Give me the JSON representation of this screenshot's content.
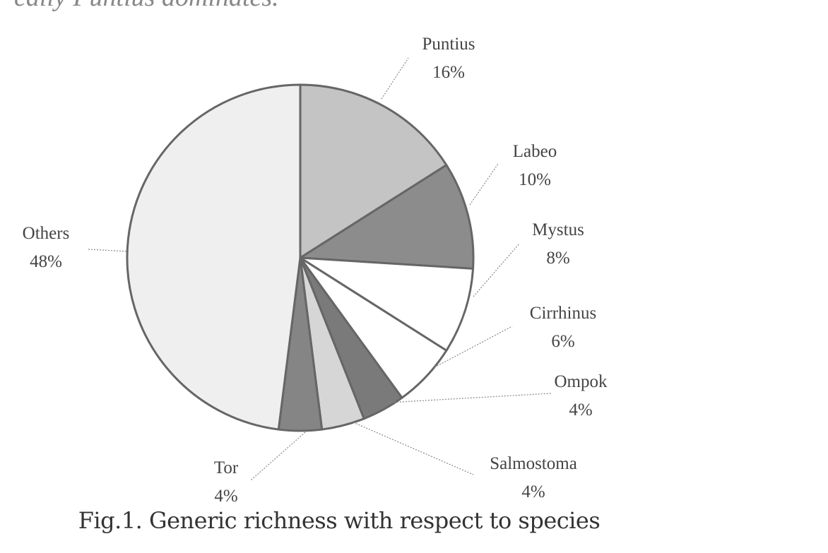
{
  "top_text": "cally Puntius dominates.",
  "caption": "Fig.1. Generic richness with respect to species",
  "chart_data": {
    "type": "pie",
    "title": "",
    "start": "top",
    "direction": "clockwise",
    "slices": [
      {
        "label": "Puntius",
        "value": 16,
        "display": "16%",
        "color": "#c4c4c4"
      },
      {
        "label": "Labeo",
        "value": 10,
        "display": "10%",
        "color": "#8c8c8c"
      },
      {
        "label": "Mystus",
        "value": 8,
        "display": "8%",
        "color": "#ffffff"
      },
      {
        "label": "Cirrhinus",
        "value": 6,
        "display": "6%",
        "color": "#ffffff"
      },
      {
        "label": "Ompok",
        "value": 4,
        "display": "4%",
        "color": "#7a7a7a"
      },
      {
        "label": "Salmostoma",
        "value": 4,
        "display": "4%",
        "color": "#d6d6d6"
      },
      {
        "label": "Tor",
        "value": 4,
        "display": "4%",
        "color": "#858585"
      },
      {
        "label": "Others",
        "value": 48,
        "display": "48%",
        "color": "#efefef"
      }
    ]
  }
}
